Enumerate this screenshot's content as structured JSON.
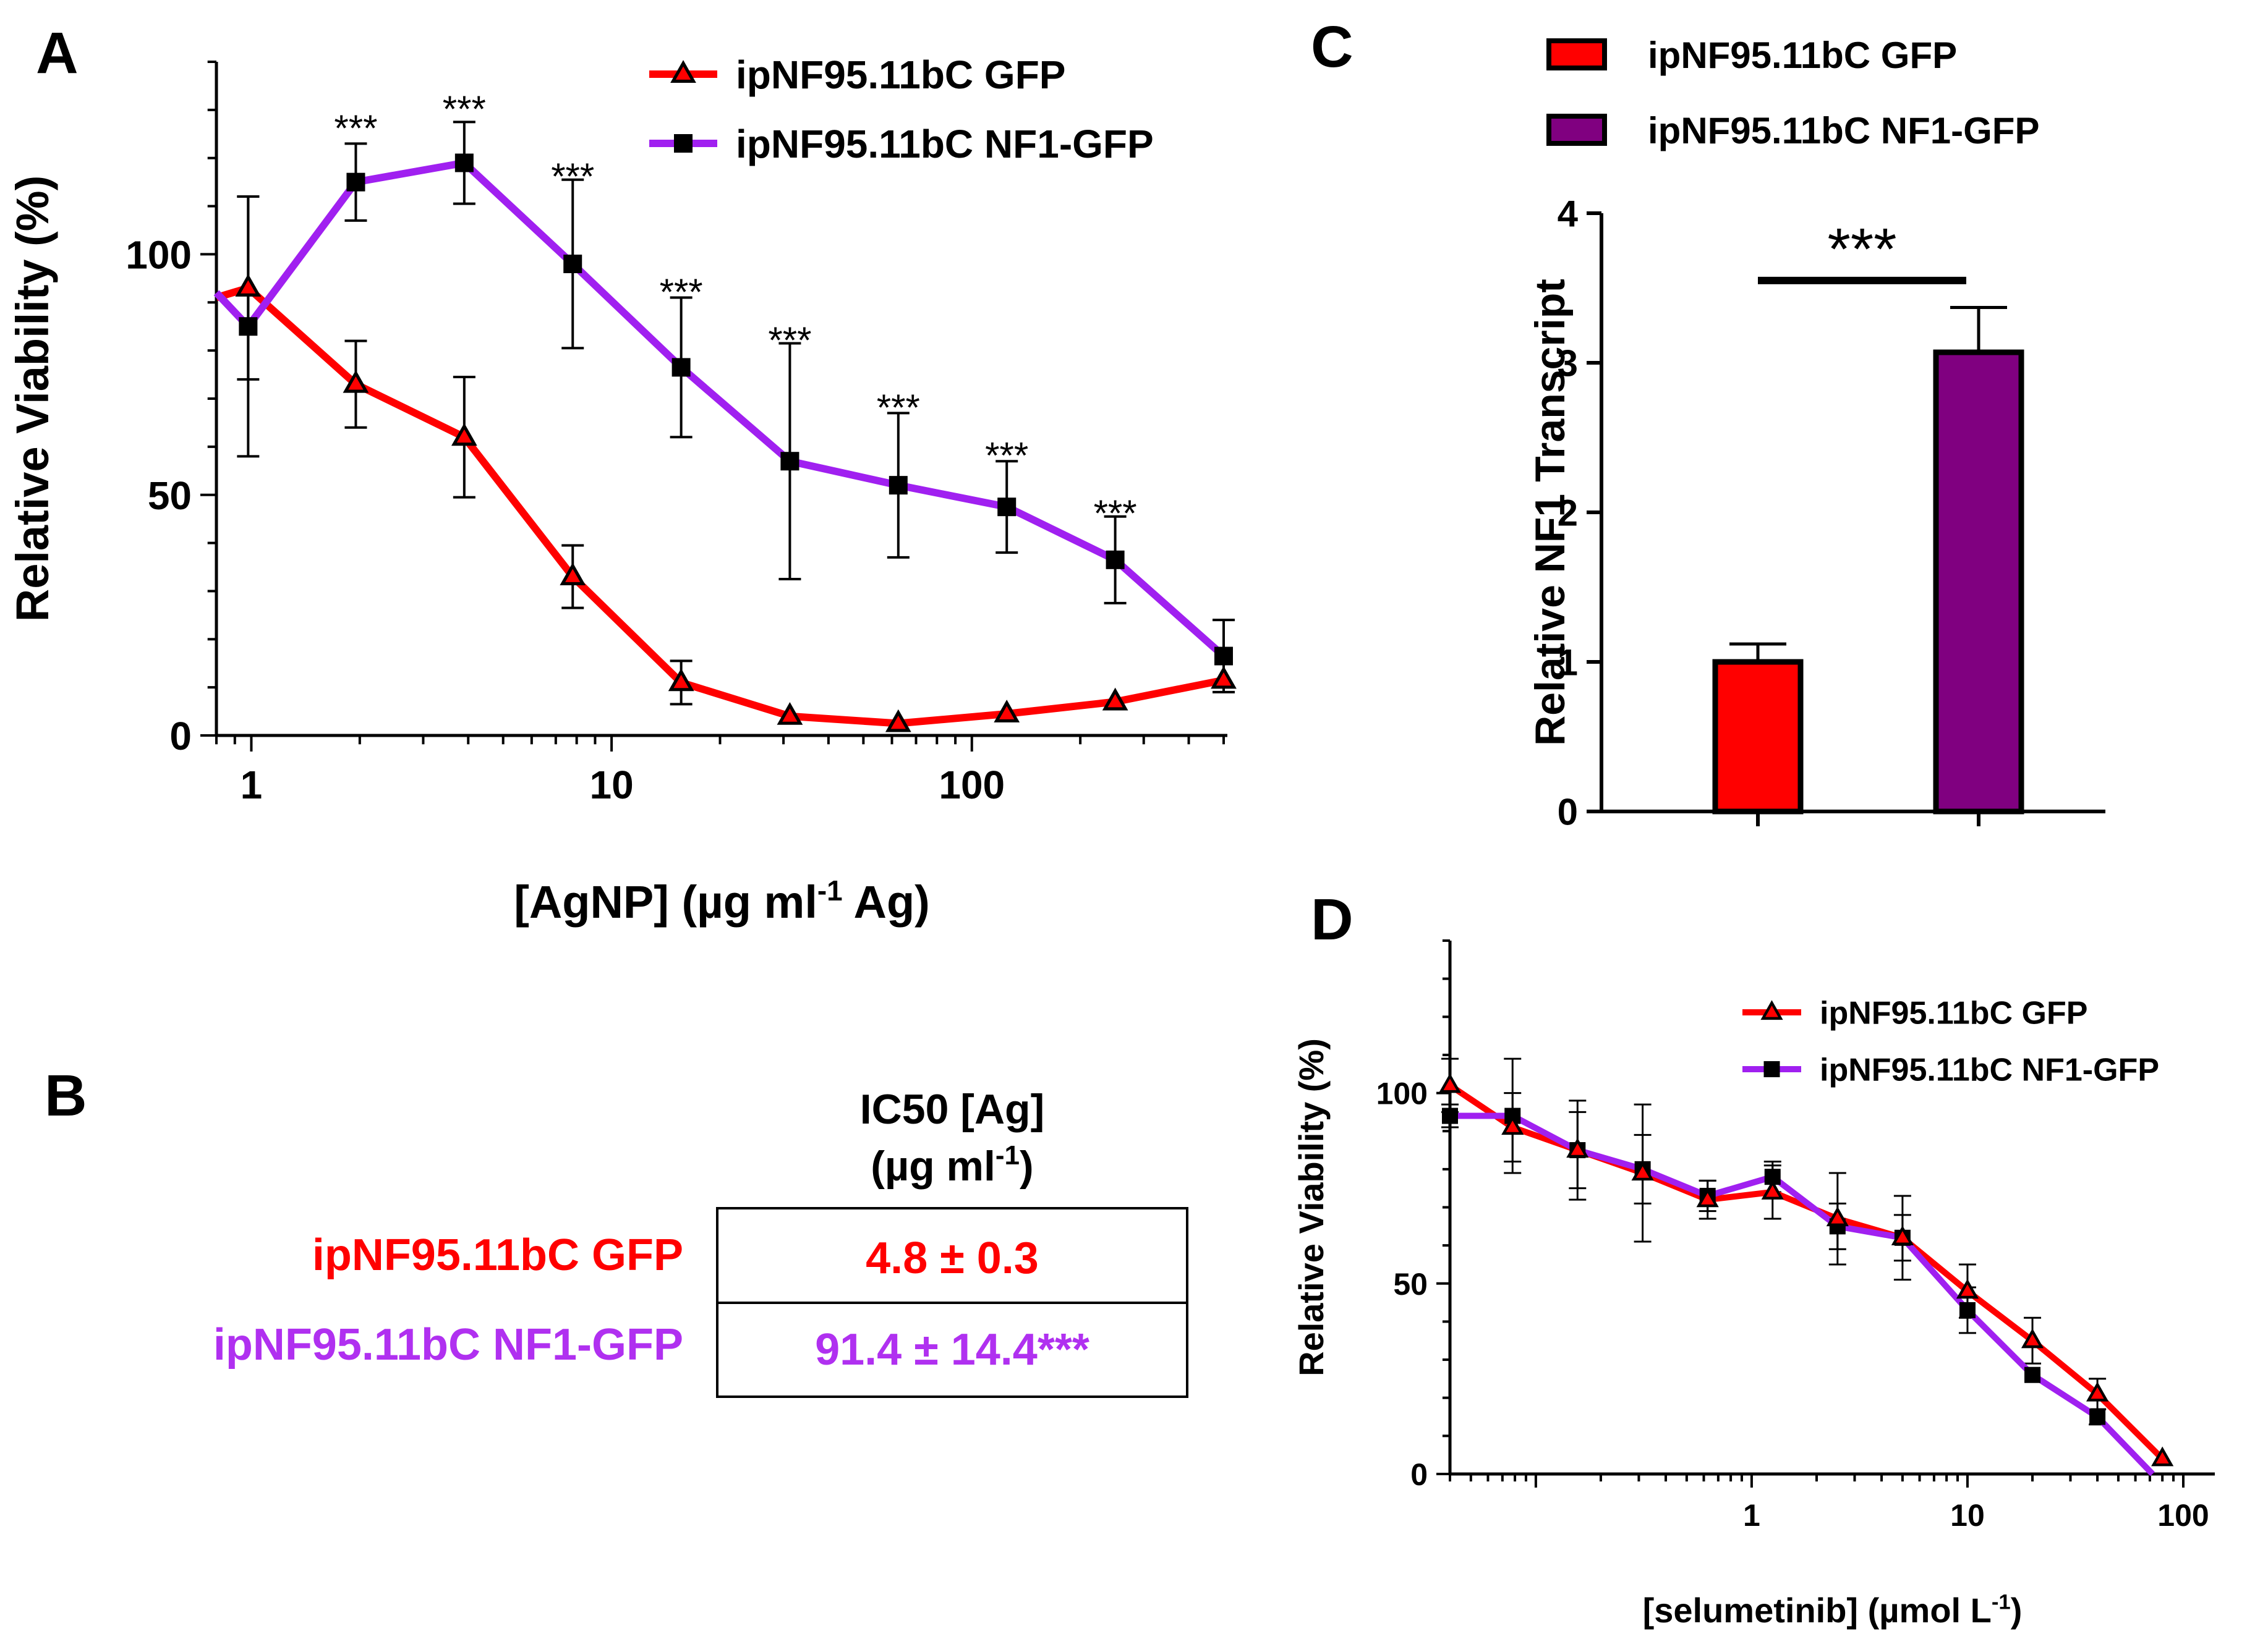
{
  "panels": {
    "a": "A",
    "b": "B",
    "c": "C",
    "d": "D"
  },
  "colors": {
    "gfp": "#ff0000",
    "nf1_line": "#a020f0",
    "nf1_bar": "#800080",
    "b_nf1_text": "#b030f0",
    "black": "#000000"
  },
  "panel_b": {
    "header_line1": "IC50 [Ag]",
    "header_line2_main": "(µg ml",
    "header_line2_sup": "-1",
    "header_line2_end": ")",
    "rows": [
      {
        "label": "ipNF95.11bC GFP",
        "value": "4.8 ± 0.3"
      },
      {
        "label": "ipNF95.11bC NF1-GFP",
        "value": "91.4 ± 14.4***"
      }
    ]
  },
  "chart_data": [
    {
      "id": "A",
      "type": "line",
      "xscale": "log",
      "xlim": [
        0.8,
        512
      ],
      "ylim": [
        0,
        140
      ],
      "xticks": [
        1,
        10,
        100
      ],
      "xticklabels": [
        "1",
        "10",
        "100"
      ],
      "yticks": [
        0,
        50,
        100
      ],
      "yticklabels": [
        "0",
        "50",
        "100"
      ],
      "xlabel_main": "[AgNP] (µg ml",
      "xlabel_sup": "-1",
      "xlabel_end": " Ag)",
      "ylabel": "Relative Viability (%)",
      "legend": "top",
      "series": [
        {
          "name": "ipNF95.11bC GFP",
          "marker": "triangle",
          "x": [
            0.8,
            0.98,
            1.95,
            3.9,
            7.8,
            15.6,
            31.25,
            62.5,
            125,
            250,
            500
          ],
          "y": [
            91,
            93,
            73,
            62,
            33,
            11,
            4,
            2.5,
            4.5,
            7,
            11.5
          ],
          "err": [
            null,
            19,
            9,
            12.5,
            6.5,
            4.5,
            0,
            0,
            0,
            0,
            0
          ]
        },
        {
          "name": "ipNF95.11bC NF1-GFP",
          "marker": "square",
          "x": [
            0.8,
            0.98,
            1.95,
            3.9,
            7.8,
            15.6,
            31.25,
            62.5,
            125,
            250,
            500
          ],
          "y": [
            92,
            85,
            115,
            119,
            98,
            76.5,
            57,
            52,
            47.5,
            36.5,
            16.5
          ],
          "err": [
            null,
            27,
            8,
            8.5,
            17.5,
            14.5,
            24.5,
            15,
            9.5,
            9,
            7.5
          ]
        }
      ],
      "significance": {
        "text": "***",
        "x": [
          1.95,
          3.9,
          7.8,
          15.6,
          31.25,
          62.5,
          125,
          250
        ],
        "y": [
          127,
          131,
          117,
          93,
          83,
          69,
          59,
          47
        ]
      }
    },
    {
      "id": "C",
      "type": "bar",
      "ylim": [
        0,
        4
      ],
      "yticks": [
        0,
        1,
        2,
        3,
        4
      ],
      "yticklabels": [
        "0",
        "1",
        "2",
        "3",
        "4"
      ],
      "ylabel": "Relative NF1 Transcript",
      "legend": "top",
      "categories": [
        "ipNF95.11bC GFP",
        "ipNF95.11bC NF1-GFP"
      ],
      "values": [
        1.0,
        3.07
      ],
      "err": [
        0.12,
        0.3
      ],
      "significance": {
        "text": "***",
        "between": [
          0,
          1
        ],
        "y": 3.55
      }
    },
    {
      "id": "D",
      "type": "line",
      "xscale": "log",
      "xlim": [
        0.04,
        140
      ],
      "ylim": [
        0,
        140
      ],
      "xticks": [
        1,
        10,
        100
      ],
      "xticklabels": [
        "1",
        "10",
        "100"
      ],
      "yticks": [
        0,
        50,
        100
      ],
      "yticklabels": [
        "0",
        "50",
        "100"
      ],
      "xlabel_main": "[selumetinib] (µmol L",
      "xlabel_sup": "-1",
      "xlabel_end": ")",
      "ylabel": "Relative Viability (%)",
      "legend": "top-right",
      "series": [
        {
          "name": "ipNF95.11bC GFP",
          "marker": "triangle",
          "x": [
            0.04,
            0.078,
            0.156,
            0.3125,
            0.625,
            1.25,
            2.5,
            5,
            10,
            20,
            40,
            80
          ],
          "y": [
            102,
            91,
            85,
            79,
            72,
            74,
            67,
            62,
            48,
            35,
            21,
            4
          ],
          "err": [
            7,
            9,
            13,
            18,
            5,
            7,
            12,
            11,
            7,
            6,
            4,
            0
          ]
        },
        {
          "name": "ipNF95.11bC NF1-GFP",
          "marker": "square",
          "x": [
            0.04,
            0.078,
            0.156,
            0.3125,
            0.625,
            1.25,
            2.5,
            5,
            10,
            20,
            40,
            72
          ],
          "y": [
            94,
            94,
            85,
            80,
            73,
            78,
            65,
            62,
            43,
            26,
            15,
            0
          ],
          "err": [
            3,
            15,
            10,
            9,
            4,
            4,
            6,
            6,
            6,
            0,
            2,
            null
          ]
        }
      ]
    }
  ]
}
